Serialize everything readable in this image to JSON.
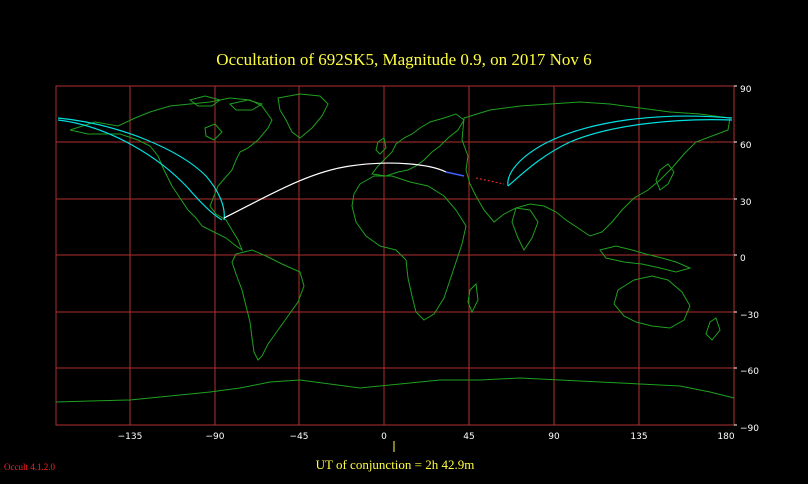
{
  "title": "Occultation  of  692SK5,       Magnitude 0.9,   on  2017 Nov  6",
  "ut_label": "UT of conjunction =  2h 42.9m",
  "version_label": "Occult 4.1.2.0",
  "map": {
    "lon_ticks": [
      "−135",
      "−90",
      "−45",
      "0",
      "45",
      "90",
      "135",
      "180"
    ],
    "lat_ticks": [
      "90",
      "60",
      "30",
      "0",
      "−30",
      "−60",
      "−90"
    ],
    "grid_color": "#b03030",
    "coast_color": "#1fa01f",
    "path_color": "#00e0e0",
    "center_line_color": "#ffffff",
    "conjunction_lon": 5,
    "lon_range": [
      -173,
      187
    ],
    "lat_range": [
      -90,
      90
    ]
  }
}
